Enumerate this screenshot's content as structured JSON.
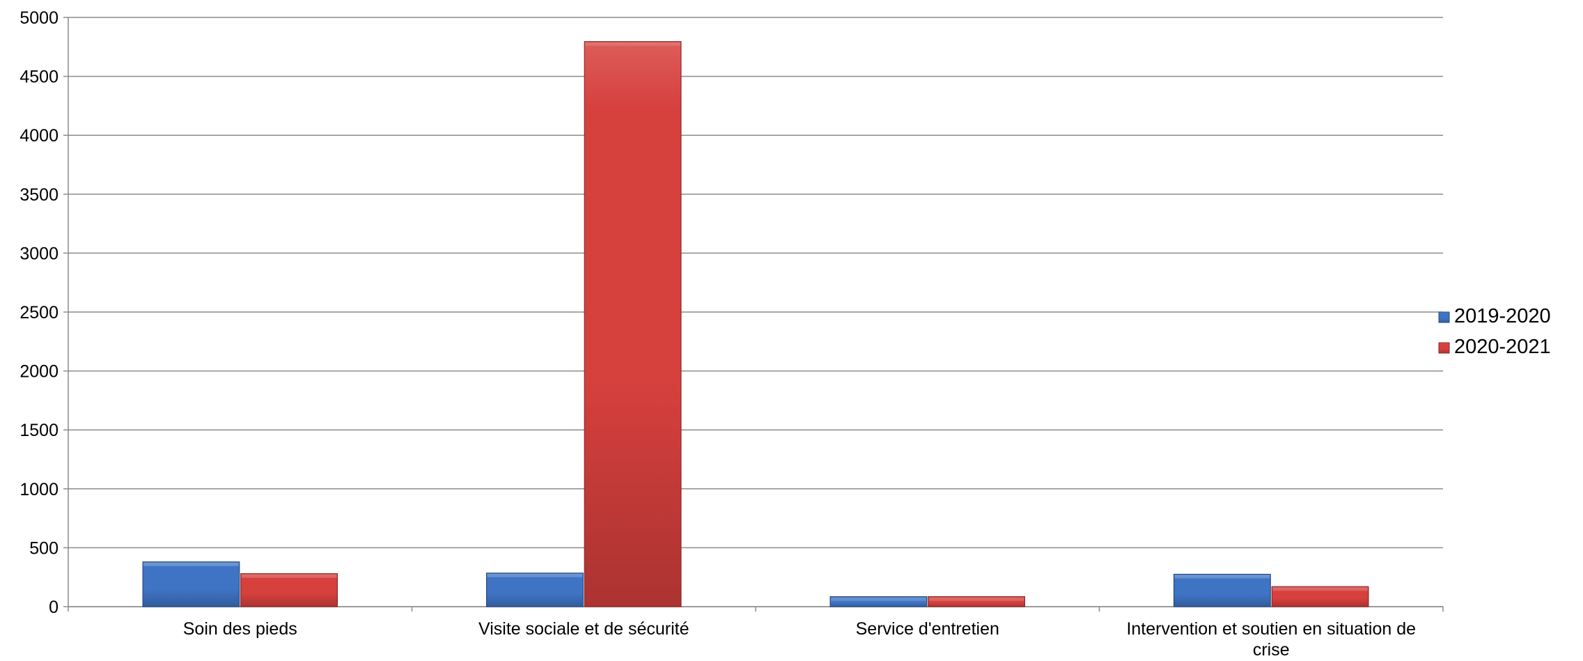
{
  "chart_data": {
    "type": "bar",
    "title": "",
    "xlabel": "",
    "ylabel": "",
    "categories": [
      [
        "Soin des pieds"
      ],
      [
        "Visite sociale et de sécurité"
      ],
      [
        "Service d'entretien"
      ],
      [
        "Intervention et soutien en situation de",
        "crise"
      ]
    ],
    "series": [
      {
        "name": "2019-2020",
        "color": "#3F74C4",
        "values": [
          380,
          285,
          85,
          275
        ]
      },
      {
        "name": "2020-2021",
        "color": "#D6403D",
        "values": [
          280,
          4795,
          85,
          170
        ]
      }
    ],
    "ylim": [
      0,
      5000
    ],
    "yticks": [
      0,
      500,
      1000,
      1500,
      2000,
      2500,
      3000,
      3500,
      4000,
      4500,
      5000
    ],
    "grid": true,
    "legend_position": "right"
  }
}
